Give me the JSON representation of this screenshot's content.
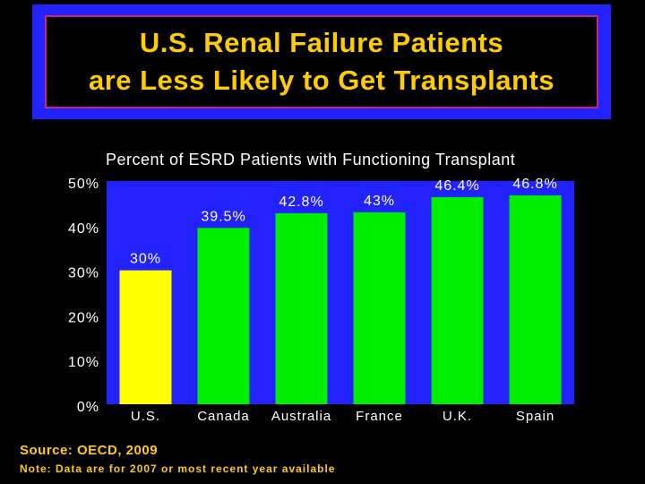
{
  "slide": {
    "title_line1": "U.S. Renal Failure Patients",
    "title_line2": "are Less Likely to Get Transplants",
    "source": "Source: OECD, 2009",
    "note": "Note: Data are for 2007 or most recent year available"
  },
  "colors": {
    "background": "#000000",
    "plot_background": "#2222ff",
    "title_text": "#ffcc00",
    "highlight_bar": "#ffff00",
    "bar": "#00ee00"
  },
  "chart_data": {
    "type": "bar",
    "title": "Percent of ESRD Patients with Functioning Transplant",
    "categories": [
      "U.S.",
      "Canada",
      "Australia",
      "France",
      "U.K.",
      "Spain"
    ],
    "values": [
      30,
      39.5,
      42.8,
      43,
      46.4,
      46.8
    ],
    "data_labels": [
      "30%",
      "39.5%",
      "42.8%",
      "43%",
      "46.4%",
      "46.8%"
    ],
    "highlight_index": 0,
    "ylim": [
      0,
      50
    ],
    "yticks": [
      0,
      10,
      20,
      30,
      40,
      50
    ],
    "ytick_labels": [
      "0%",
      "10%",
      "20%",
      "30%",
      "40%",
      "50%"
    ],
    "xlabel": "",
    "ylabel": "",
    "grid": false
  }
}
